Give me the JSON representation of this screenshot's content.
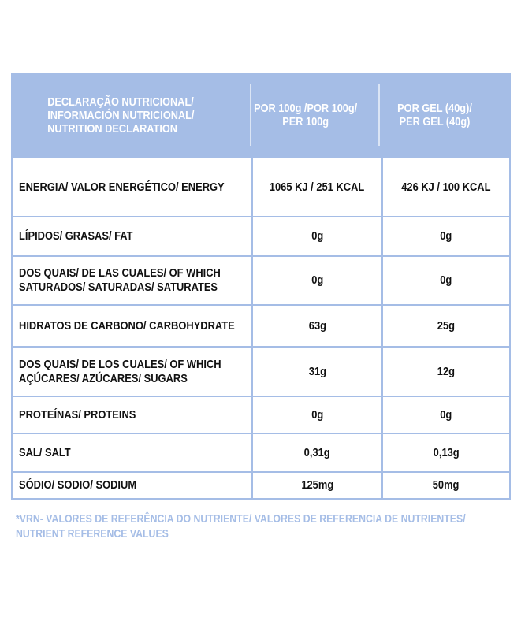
{
  "header": {
    "col1": [
      "DECLARAÇÃO NUTRICIONAL/",
      "INFORMACIÓN NUTRICIONAL/",
      "NUTRITION DECLARATION"
    ],
    "col2": [
      "POR 100g /POR 100g/",
      "PER 100g"
    ],
    "col3": [
      "POR GEL (40g)/",
      "PER GEL (40g)"
    ]
  },
  "rows": [
    {
      "label": [
        "ENERGIA/ VALOR ENERGÉTICO/ ENERGY"
      ],
      "per100": "1065 KJ / 251 KCAL",
      "perGel": "426 KJ / 100 KCAL"
    },
    {
      "label": [
        "LÍPIDOS/ GRASAS/ FAT"
      ],
      "per100": "0g",
      "perGel": "0g"
    },
    {
      "label": [
        "DOS QUAIS/ DE LAS CUALES/ OF WHICH",
        "SATURADOS/ SATURADAS/ SATURATES"
      ],
      "per100": "0g",
      "perGel": "0g"
    },
    {
      "label": [
        "HIDRATOS DE CARBONO/ CARBOHYDRATE"
      ],
      "per100": "63g",
      "perGel": "25g"
    },
    {
      "label": [
        "DOS QUAIS/ DE LOS CUALES/ OF WHICH",
        "AÇÚCARES/ AZÚCARES/ SUGARS"
      ],
      "per100": "31g",
      "perGel": "12g"
    },
    {
      "label": [
        "PROTEÍNAS/ PROTEINS"
      ],
      "per100": "0g",
      "perGel": "0g"
    },
    {
      "label": [
        "SAL/ SALT"
      ],
      "per100": "0,31g",
      "perGel": "0,13g"
    },
    {
      "label": [
        "SÓDIO/ SODIO/ SODIUM"
      ],
      "per100": "125mg",
      "perGel": "50mg"
    }
  ],
  "footnote": [
    "*VRN- VALORES DE REFERÊNCIA DO NUTRIENTE/ VALORES DE REFERENCIA DE NUTRIENTES/",
    "NUTRIENT REFERENCE VALUES"
  ],
  "colors": {
    "accent": "#a5bde6",
    "text": "#111111"
  }
}
